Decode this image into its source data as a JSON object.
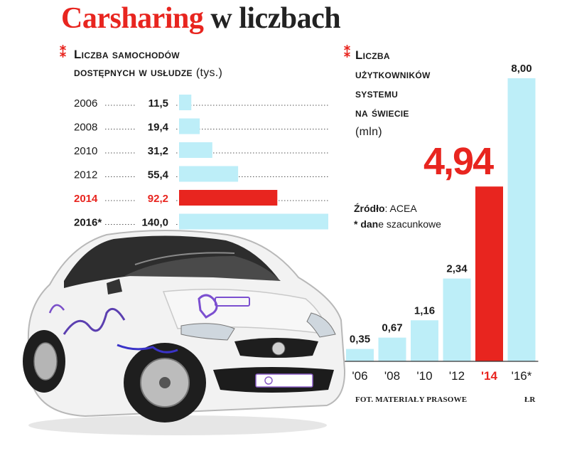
{
  "title": {
    "part1": "Carsharing",
    "part2": "w liczbach"
  },
  "left_header": {
    "line1": "Liczba samochodów",
    "line2": "dostępnych w usłudze",
    "unit": "(tys.)"
  },
  "right_header": {
    "line1": "Liczba",
    "line2": "użytkowników",
    "line3": "systemu",
    "line4": "na świecie",
    "unit": "(mln)"
  },
  "source": {
    "label": "Źródło",
    "value": ": ACEA",
    "note_bold": "* dan",
    "note_rest": "e szacunkowe"
  },
  "highlight_value": "4,94",
  "footer": {
    "photo_credit": "FOT. MATERIAŁY PRASOWE",
    "author": "ŁR"
  },
  "colors": {
    "accent": "#e8251f",
    "bar": "#bdeef8",
    "text": "#1a1a1a"
  },
  "chart_data": [
    {
      "type": "bar",
      "orientation": "horizontal",
      "title": "Liczba samochodów dostępnych w usłudze (tys.)",
      "categories": [
        "2006",
        "2008",
        "2010",
        "2012",
        "2014",
        "2016*"
      ],
      "labels": [
        "11,5",
        "19,4",
        "31,2",
        "55,4",
        "92,2",
        "140,0"
      ],
      "values": [
        11.5,
        19.4,
        31.2,
        55.4,
        92.2,
        140.0
      ],
      "highlight_index": 4,
      "xlim": [
        0,
        140
      ]
    },
    {
      "type": "bar",
      "orientation": "vertical",
      "title": "Liczba użytkowników systemu na świecie (mln)",
      "categories": [
        "'06",
        "'08",
        "'10",
        "'12",
        "'14",
        "'16*"
      ],
      "labels": [
        "0,35",
        "0,67",
        "1,16",
        "2,34",
        "4,94",
        "8,00"
      ],
      "values": [
        0.35,
        0.67,
        1.16,
        2.34,
        4.94,
        8.0
      ],
      "highlight_index": 4,
      "ylim": [
        0,
        8
      ]
    }
  ]
}
